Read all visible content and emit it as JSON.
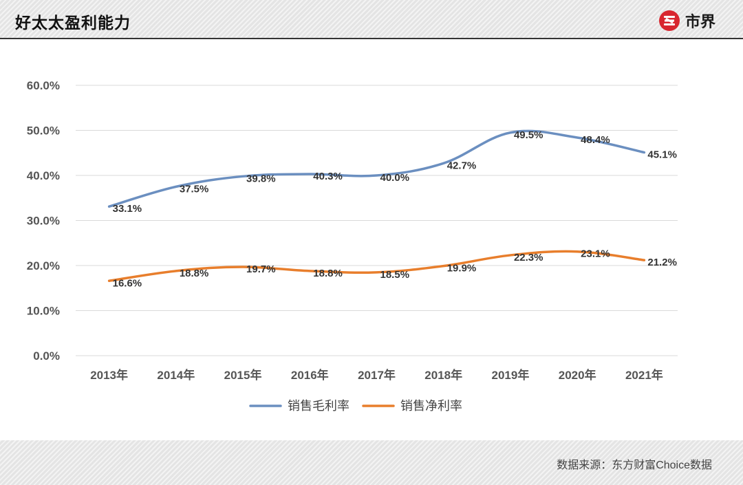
{
  "header": {
    "title": "好太太盈利能力"
  },
  "brand": {
    "logo_text": "市界"
  },
  "footer": {
    "source": "数据来源：东方财富Choice数据"
  },
  "colors": {
    "gross": "#6b8fc0",
    "net": "#e87e2c",
    "grid": "#d9d9d9",
    "logo_red": "#d8262f"
  },
  "chart_data": {
    "type": "line",
    "title": "好太太盈利能力",
    "categories": [
      "2013年",
      "2014年",
      "2015年",
      "2016年",
      "2017年",
      "2018年",
      "2019年",
      "2020年",
      "2021年"
    ],
    "series": [
      {
        "name": "销售毛利率",
        "values": [
          33.1,
          37.5,
          39.8,
          40.3,
          40.0,
          42.7,
          49.5,
          48.4,
          45.1
        ],
        "labels": [
          "33.1%",
          "37.5%",
          "39.8%",
          "40.3%",
          "40.0%",
          "42.7%",
          "49.5%",
          "48.4%",
          "45.1%"
        ]
      },
      {
        "name": "销售净利率",
        "values": [
          16.6,
          18.8,
          19.7,
          18.8,
          18.5,
          19.9,
          22.3,
          23.1,
          21.2
        ],
        "labels": [
          "16.6%",
          "18.8%",
          "19.7%",
          "18.8%",
          "18.5%",
          "19.9%",
          "22.3%",
          "23.1%",
          "21.2%"
        ]
      }
    ],
    "yticks": [
      "0.0%",
      "10.0%",
      "20.0%",
      "30.0%",
      "40.0%",
      "50.0%",
      "60.0%"
    ],
    "ylim": [
      0,
      60
    ],
    "grid": true,
    "legend": "bottom-center",
    "xlabel": "",
    "ylabel": ""
  }
}
